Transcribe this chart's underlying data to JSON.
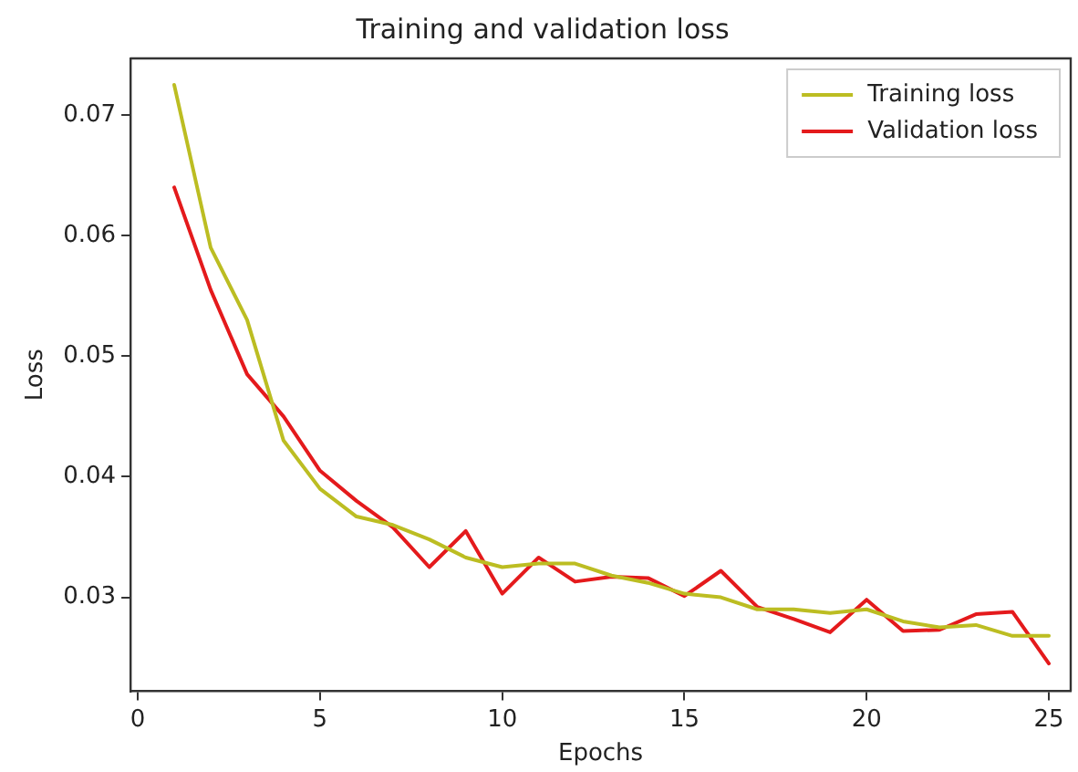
{
  "chart_data": {
    "type": "line",
    "title": "Training and validation loss",
    "xlabel": "Epochs",
    "ylabel": "Loss",
    "x": [
      1,
      2,
      3,
      4,
      5,
      6,
      7,
      8,
      9,
      10,
      11,
      12,
      13,
      14,
      15,
      16,
      17,
      18,
      19,
      20,
      21,
      22,
      23,
      24,
      25
    ],
    "series": [
      {
        "name": "Training loss",
        "color": "#bcbd22",
        "values": [
          0.0725,
          0.059,
          0.053,
          0.043,
          0.039,
          0.0367,
          0.036,
          0.0348,
          0.0333,
          0.0325,
          0.0328,
          0.0328,
          0.0318,
          0.0312,
          0.0303,
          0.03,
          0.029,
          0.029,
          0.0287,
          0.029,
          0.028,
          0.0275,
          0.0277,
          0.0268,
          0.0268
        ]
      },
      {
        "name": "Validation loss",
        "color": "#e41a1c",
        "values": [
          0.064,
          0.0555,
          0.0485,
          0.045,
          0.0405,
          0.038,
          0.0358,
          0.0325,
          0.0355,
          0.0303,
          0.0333,
          0.0313,
          0.0317,
          0.0316,
          0.0301,
          0.0322,
          0.0292,
          0.0282,
          0.0271,
          0.0298,
          0.0272,
          0.0273,
          0.0286,
          0.0288,
          0.0245
        ]
      }
    ],
    "xlim": [
      -0.2,
      25.6
    ],
    "xticks": [
      0,
      5,
      10,
      15,
      20,
      25
    ],
    "ylim": [
      0.0222,
      0.0747
    ],
    "yticks": [
      0.03,
      0.04,
      0.05,
      0.06,
      0.07
    ],
    "grid": false,
    "legend": "top right",
    "marker": "none",
    "line_style": "solid"
  }
}
